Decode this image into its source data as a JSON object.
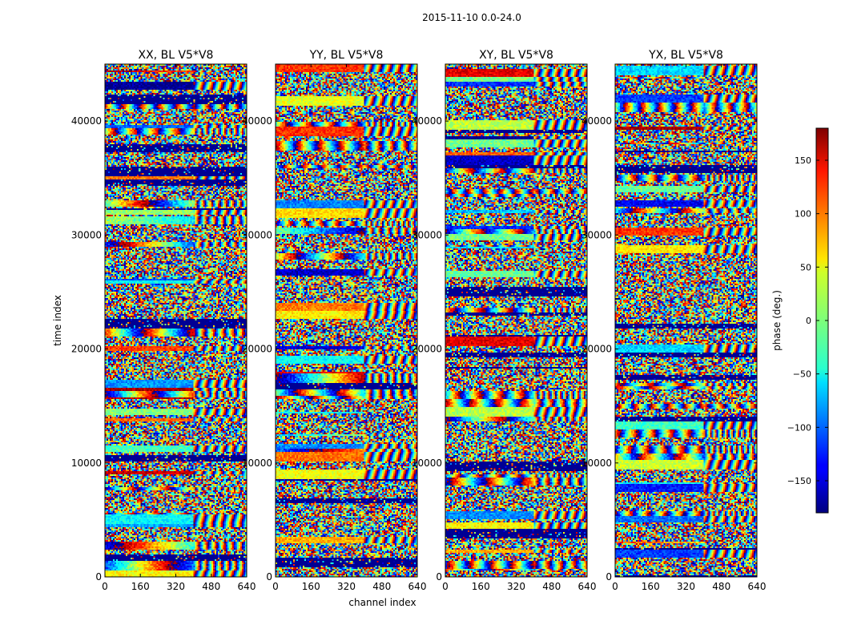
{
  "figure": {
    "suptitle": "2015-11-10 0.0-24.0"
  },
  "chart_data": [
    {
      "type": "heatmap",
      "title": "XX, BL V5*V8",
      "xlabel": "",
      "ylabel": "time index",
      "xlim": [
        0,
        640
      ],
      "ylim": [
        0,
        45000
      ],
      "xticks": [
        0,
        160,
        320,
        480,
        640
      ],
      "yticks": [
        0,
        10000,
        20000,
        30000,
        40000
      ],
      "colorbar": "phase (deg.)"
    },
    {
      "type": "heatmap",
      "title": "YY, BL V5*V8",
      "xlabel": "channel index",
      "ylabel": "",
      "xlim": [
        0,
        640
      ],
      "ylim": [
        0,
        45000
      ],
      "xticks": [
        0,
        160,
        320,
        480,
        640
      ],
      "yticks": [
        0,
        10000,
        20000,
        30000,
        40000
      ],
      "colorbar": "phase (deg.)"
    },
    {
      "type": "heatmap",
      "title": "XY, BL V5*V8",
      "xlabel": "",
      "ylabel": "",
      "xlim": [
        0,
        640
      ],
      "ylim": [
        0,
        45000
      ],
      "xticks": [
        0,
        160,
        320,
        480,
        640
      ],
      "yticks": [
        0,
        10000,
        20000,
        30000,
        40000
      ],
      "colorbar": "phase (deg.)"
    },
    {
      "type": "heatmap",
      "title": "YX, BL V5*V8",
      "xlabel": "",
      "ylabel": "",
      "xlim": [
        0,
        640
      ],
      "ylim": [
        0,
        45000
      ],
      "xticks": [
        0,
        160,
        320,
        480,
        640
      ],
      "yticks": [
        0,
        10000,
        20000,
        30000,
        40000
      ],
      "colorbar": "phase (deg.)"
    }
  ],
  "colorbar": {
    "label": "phase (deg.)",
    "range": [
      -180,
      180
    ],
    "ticks": [
      -150,
      -100,
      -50,
      0,
      50,
      100,
      150
    ],
    "tick_labels": [
      "−150",
      "−100",
      "−50",
      "0",
      "50",
      "100",
      "150"
    ],
    "colormap": "jet"
  }
}
